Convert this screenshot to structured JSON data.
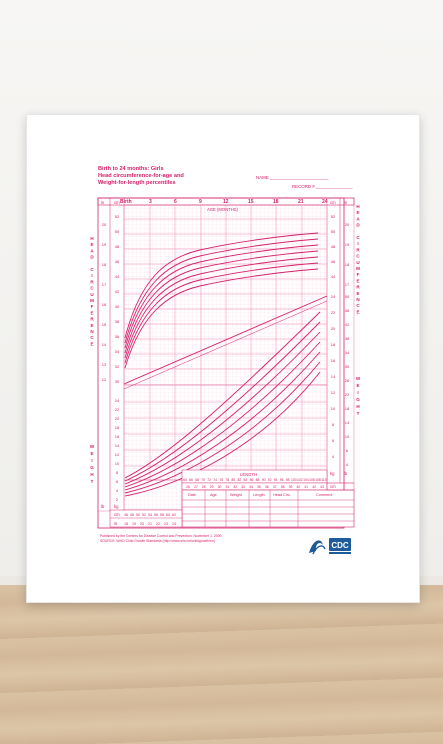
{
  "scene": {
    "description_colors": {
      "chart": "#d4206b",
      "grid": "#f3a9c6",
      "wall": "#f2f1ef",
      "floor": "#d3b999"
    }
  },
  "poster": {
    "title_lines": [
      "Birth to 24 months: Girls",
      "Head circumference-for-age and",
      "Weight-for-length percentiles"
    ],
    "name_label": "NAME",
    "record_label": "RECORD #",
    "age_header": "AGE (MONTHS)",
    "age_ticks": [
      "Birth",
      "3",
      "6",
      "9",
      "12",
      "15",
      "18",
      "21",
      "24"
    ],
    "unit_in": "in",
    "unit_cm": "cm",
    "unit_kg": "kg",
    "unit_lb": "lb",
    "length_label": "LENGTH",
    "left_vertical_1": "HEAD CIRCUMFERENCE",
    "right_vertical_1": "HEAD CIRCUMFERENCE",
    "left_vertical_2": "WEIGHT",
    "right_vertical_2": "WEIGHT",
    "hc_cm_ticks": [
      "52",
      "50",
      "48",
      "46",
      "44",
      "42",
      "40",
      "38",
      "36",
      "34",
      "32",
      "30"
    ],
    "hc_in_ticks": [
      "20",
      "19",
      "18",
      "17",
      "16",
      "15",
      "14",
      "13",
      "12"
    ],
    "wt_kg_ticks": [
      "24",
      "22",
      "20",
      "18",
      "16",
      "14",
      "12",
      "10",
      "8",
      "6",
      "4",
      "2"
    ],
    "wt_lb_ticks": [
      "50",
      "48",
      "46",
      "44",
      "42",
      "40",
      "38",
      "36",
      "34",
      "32",
      "30",
      "28",
      "26",
      "24",
      "22",
      "20",
      "18",
      "16",
      "14",
      "12",
      "10",
      "8",
      "6",
      "4"
    ],
    "length_cm_row": [
      "46",
      "48",
      "50",
      "52",
      "54",
      "56",
      "58",
      "60",
      "62"
    ],
    "length_in_row": [
      "18",
      "19",
      "20",
      "21",
      "22",
      "23",
      "24"
    ],
    "length_cm_row2": [
      "64",
      "66",
      "68",
      "70",
      "72",
      "74",
      "76",
      "78",
      "80",
      "82",
      "84",
      "86",
      "88",
      "90",
      "92",
      "94",
      "96",
      "98",
      "100",
      "102",
      "104",
      "106",
      "108",
      "110"
    ],
    "length_in_row2": [
      "26",
      "27",
      "28",
      "29",
      "30",
      "31",
      "32",
      "33",
      "34",
      "35",
      "36",
      "37",
      "38",
      "39",
      "40",
      "41",
      "42",
      "43"
    ],
    "record_table_headers": [
      "Date",
      "Age",
      "Weight",
      "Length",
      "Head Circ.",
      "Comment"
    ],
    "footer_lines": [
      "Published by the Centers for Disease Control and Prevention, November 1, 2009",
      "SOURCE: WHO Child Growth Standards (http://www.who.int/childgrowth/en)"
    ],
    "logo_text": "CDC"
  }
}
